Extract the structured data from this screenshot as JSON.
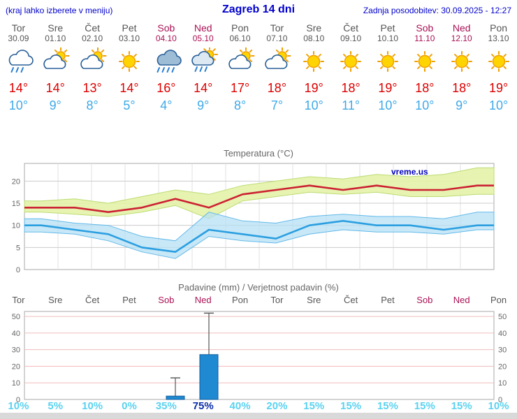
{
  "header": {
    "hint": "(kraj lahko izberete v meniju)",
    "title": "Zagreb 14 dni",
    "last_update": "Zadnja posodobitev: 30.09.2025 - 12:27"
  },
  "colors": {
    "header-blue": "#0000cc",
    "weekend": "#aa1155",
    "tmax": "#dd0000",
    "tmin": "#3fa9e8",
    "prob": "#5ad2f0",
    "prob-strong": "#0a2ea8",
    "line-max": "#cc2233",
    "line-min": "#2b9fe0",
    "band-max": "#e4f2a8",
    "band-max-edge": "#bcdc72",
    "band-min": "#b5e0f5",
    "band-min-edge": "#62b9e8",
    "bar": "#1f8ad2",
    "bar-edge": "#0f5c9c",
    "grid-pink": "#f2bcbc"
  },
  "days": [
    {
      "name": "Tor",
      "date": "30.09",
      "weekend": false,
      "icon": "cloud-rain",
      "tmax": "14°",
      "tmin": "10°",
      "prob": "10%",
      "prob_strong": false
    },
    {
      "name": "Sre",
      "date": "01.10",
      "weekend": false,
      "icon": "sun-cloud",
      "tmax": "14°",
      "tmin": "9°",
      "prob": "5%",
      "prob_strong": false
    },
    {
      "name": "Čet",
      "date": "02.10",
      "weekend": false,
      "icon": "sun-cloud",
      "tmax": "13°",
      "tmin": "8°",
      "prob": "10%",
      "prob_strong": false
    },
    {
      "name": "Pet",
      "date": "03.10",
      "weekend": false,
      "icon": "sun",
      "tmax": "14°",
      "tmin": "5°",
      "prob": "0%",
      "prob_strong": false
    },
    {
      "name": "Sob",
      "date": "04.10",
      "weekend": true,
      "icon": "cloud-heavy-rain",
      "tmax": "16°",
      "tmin": "4°",
      "prob": "35%",
      "prob_strong": false
    },
    {
      "name": "Ned",
      "date": "05.10",
      "weekend": true,
      "icon": "sun-cloud-rain",
      "tmax": "14°",
      "tmin": "9°",
      "prob": "75%",
      "prob_strong": true
    },
    {
      "name": "Pon",
      "date": "06.10",
      "weekend": false,
      "icon": "sun-cloud",
      "tmax": "17°",
      "tmin": "8°",
      "prob": "40%",
      "prob_strong": false
    },
    {
      "name": "Tor",
      "date": "07.10",
      "weekend": false,
      "icon": "sun-cloud",
      "tmax": "18°",
      "tmin": "7°",
      "prob": "20%",
      "prob_strong": false
    },
    {
      "name": "Sre",
      "date": "08.10",
      "weekend": false,
      "icon": "sun",
      "tmax": "19°",
      "tmin": "10°",
      "prob": "15%",
      "prob_strong": false
    },
    {
      "name": "Čet",
      "date": "09.10",
      "weekend": false,
      "icon": "sun",
      "tmax": "18°",
      "tmin": "11°",
      "prob": "15%",
      "prob_strong": false
    },
    {
      "name": "Pet",
      "date": "10.10",
      "weekend": false,
      "icon": "sun",
      "tmax": "19°",
      "tmin": "10°",
      "prob": "15%",
      "prob_strong": false
    },
    {
      "name": "Sob",
      "date": "11.10",
      "weekend": true,
      "icon": "sun",
      "tmax": "18°",
      "tmin": "10°",
      "prob": "15%",
      "prob_strong": false
    },
    {
      "name": "Ned",
      "date": "12.10",
      "weekend": true,
      "icon": "sun",
      "tmax": "18°",
      "tmin": "9°",
      "prob": "15%",
      "prob_strong": false
    },
    {
      "name": "Pon",
      "date": "13.10",
      "weekend": false,
      "icon": "sun",
      "tmax": "19°",
      "tmin": "10°",
      "prob": "10%",
      "prob_strong": false
    }
  ],
  "chart_data": [
    {
      "type": "line",
      "title": "Temperatura (°C)",
      "watermark": "vreme.us",
      "categories": [
        "Tor",
        "Sre",
        "Čet",
        "Pet",
        "Sob",
        "Ned",
        "Pon",
        "Tor",
        "Sre",
        "Čet",
        "Pet",
        "Sob",
        "Ned",
        "Pon"
      ],
      "series": [
        {
          "name": "max",
          "values": [
            14,
            14,
            13,
            14,
            16,
            14,
            17,
            18,
            19,
            18,
            19,
            18,
            18,
            19
          ]
        },
        {
          "name": "min",
          "values": [
            10,
            9,
            8,
            5,
            4,
            9,
            8,
            7,
            10,
            11,
            10,
            10,
            9,
            10
          ]
        },
        {
          "name": "max_band_upper",
          "values": [
            15.5,
            16,
            15,
            16.5,
            18,
            17,
            19,
            20,
            21,
            20.5,
            21.5,
            21,
            21.5,
            23
          ]
        },
        {
          "name": "max_band_lower",
          "values": [
            13,
            12.5,
            12,
            13,
            14.5,
            11.5,
            15.5,
            16.5,
            17.5,
            17,
            17.5,
            16.5,
            16.5,
            17
          ]
        },
        {
          "name": "min_band_upper",
          "values": [
            11.5,
            10.5,
            10,
            7.5,
            6.5,
            13,
            11,
            10.5,
            12,
            12.5,
            12,
            12,
            11.5,
            13
          ]
        },
        {
          "name": "min_band_lower",
          "values": [
            8.5,
            8,
            6.5,
            4,
            2.5,
            7.5,
            6.5,
            6,
            8,
            9,
            8.5,
            8.5,
            8,
            9
          ]
        }
      ],
      "ylim": [
        0,
        24
      ],
      "yticks": [
        0,
        5,
        10,
        15,
        20
      ],
      "xlabel": "",
      "ylabel": "Temperatura (°C)",
      "grid": true,
      "legend": "none"
    },
    {
      "type": "bar",
      "title": "Padavine (mm) / Verjetnost padavin (%)",
      "categories": [
        "Tor",
        "Sre",
        "Čet",
        "Pet",
        "Sob",
        "Ned",
        "Pon",
        "Tor",
        "Sre",
        "Čet",
        "Pet",
        "Sob",
        "Ned",
        "Pon"
      ],
      "values": [
        0,
        0,
        0,
        0,
        2,
        27,
        0,
        0,
        0,
        0,
        0,
        0,
        0,
        0
      ],
      "whiskers": [
        0,
        0,
        0,
        0,
        13,
        52,
        0,
        0,
        0,
        0,
        0,
        0,
        0,
        0
      ],
      "probabilities": [
        "10%",
        "5%",
        "10%",
        "0%",
        "35%",
        "75%",
        "40%",
        "20%",
        "15%",
        "15%",
        "15%",
        "15%",
        "15%",
        "10%"
      ],
      "ylim": [
        0,
        53
      ],
      "yticks": [
        0,
        10,
        20,
        30,
        40,
        50
      ],
      "xlabel": "",
      "ylabel": "Padavine (mm)",
      "grid": true,
      "legend": "none"
    }
  ]
}
